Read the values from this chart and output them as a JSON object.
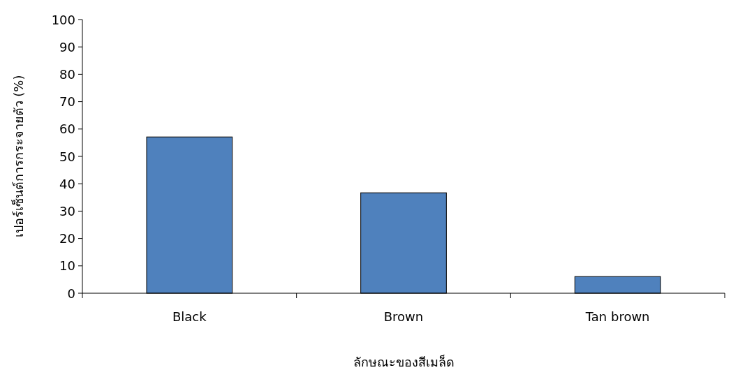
{
  "chart_data": {
    "type": "bar",
    "xlabel": "ลักษณะของสีเมล็ด",
    "ylabel": "เปอร์เซ็นต์การกระจายตัว (%)",
    "categories": [
      "Black",
      "Brown",
      "Tan brown"
    ],
    "values": [
      57.1,
      36.7,
      6.1
    ],
    "color": "#4f81bd",
    "ylim": [
      0,
      100
    ],
    "yticks": [
      0,
      10,
      20,
      30,
      40,
      50,
      60,
      70,
      80,
      90,
      100
    ]
  }
}
